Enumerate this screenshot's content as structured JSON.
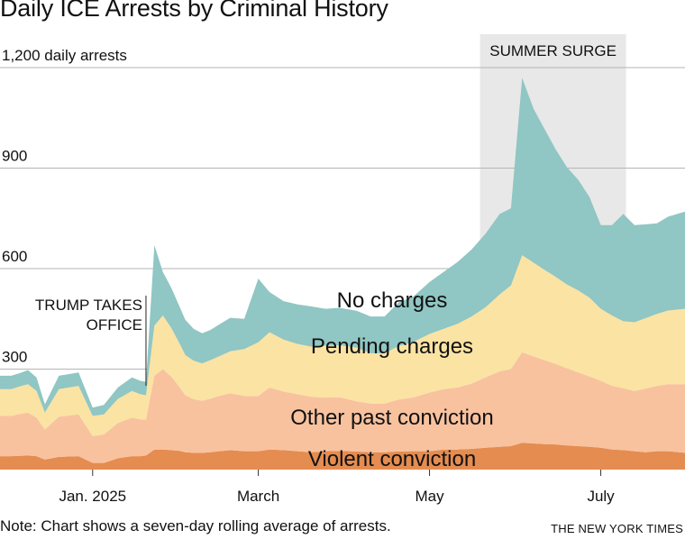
{
  "title": "Daily ICE Arrests by Criminal History",
  "note": "Note: Chart shows a seven-day rolling average of arrests.",
  "source": "THE NEW YORK TIMES",
  "colors": {
    "violent": "#e58c50",
    "other_past": "#f8c29f",
    "pending": "#fbe3a3",
    "no_charges": "#90c6c3",
    "shade": "#c8c8c8",
    "grid": "#b5b5b5"
  },
  "chart_data": {
    "type": "area",
    "stacked": true,
    "x_start": "2024-11-29",
    "x_end": "2025-07-31",
    "ylim": [
      0,
      1200
    ],
    "yticks": [
      {
        "value": 300,
        "label": "300"
      },
      {
        "value": 600,
        "label": "600"
      },
      {
        "value": 900,
        "label": "900"
      },
      {
        "value": 1200,
        "label": "1,200 daily arrests"
      }
    ],
    "xticks": [
      {
        "date": "2025-01-01",
        "label": "Jan. 2025"
      },
      {
        "date": "2025-03-01",
        "label": "March"
      },
      {
        "date": "2025-05-01",
        "label": "May"
      },
      {
        "date": "2025-07-01",
        "label": "July"
      }
    ],
    "x": [
      "2024-11-29",
      "2024-12-03",
      "2024-12-06",
      "2024-12-09",
      "2024-12-12",
      "2024-12-15",
      "2024-12-20",
      "2024-12-27",
      "2025-01-01",
      "2025-01-05",
      "2025-01-10",
      "2025-01-15",
      "2025-01-18",
      "2025-01-20",
      "2025-01-23",
      "2025-01-26",
      "2025-01-29",
      "2025-02-01",
      "2025-02-03",
      "2025-02-06",
      "2025-02-09",
      "2025-02-12",
      "2025-02-15",
      "2025-02-19",
      "2025-02-24",
      "2025-03-01",
      "2025-03-05",
      "2025-03-10",
      "2025-03-15",
      "2025-03-20",
      "2025-03-25",
      "2025-03-30",
      "2025-04-05",
      "2025-04-10",
      "2025-04-15",
      "2025-04-20",
      "2025-04-25",
      "2025-05-01",
      "2025-05-06",
      "2025-05-11",
      "2025-05-16",
      "2025-05-21",
      "2025-05-26",
      "2025-05-30",
      "2025-06-03",
      "2025-06-07",
      "2025-06-11",
      "2025-06-15",
      "2025-06-19",
      "2025-06-23",
      "2025-06-27",
      "2025-07-01",
      "2025-07-05",
      "2025-07-09",
      "2025-07-13",
      "2025-07-17",
      "2025-07-21",
      "2025-07-25",
      "2025-07-31"
    ],
    "series": [
      {
        "name": "Violent conviction",
        "label": "Violent conviction",
        "color_key": "violent",
        "values": [
          40,
          40,
          41,
          42,
          40,
          30,
          38,
          40,
          20,
          20,
          34,
          40,
          40,
          42,
          60,
          60,
          58,
          56,
          52,
          50,
          50,
          52,
          55,
          58,
          55,
          55,
          60,
          58,
          55,
          52,
          55,
          56,
          54,
          52,
          52,
          54,
          55,
          55,
          60,
          60,
          62,
          65,
          68,
          70,
          80,
          78,
          76,
          75,
          72,
          70,
          68,
          65,
          60,
          58,
          55,
          52,
          55,
          55,
          50
        ]
      },
      {
        "name": "Other past conviction",
        "label": "Other past conviction",
        "color_key": "other_past",
        "values": [
          120,
          120,
          125,
          128,
          115,
          90,
          120,
          125,
          80,
          85,
          105,
          115,
          110,
          108,
          220,
          240,
          220,
          190,
          170,
          160,
          155,
          160,
          165,
          170,
          165,
          165,
          185,
          175,
          170,
          165,
          160,
          160,
          150,
          145,
          145,
          155,
          160,
          175,
          180,
          185,
          195,
          210,
          225,
          230,
          270,
          260,
          250,
          240,
          230,
          220,
          210,
          200,
          190,
          185,
          180,
          190,
          195,
          200,
          205
        ]
      },
      {
        "name": "Pending charges",
        "label": "Pending charges",
        "color_key": "pending",
        "values": [
          80,
          80,
          82,
          85,
          80,
          50,
          82,
          85,
          60,
          60,
          72,
          80,
          75,
          72,
          150,
          160,
          145,
          130,
          120,
          115,
          112,
          115,
          118,
          125,
          140,
          160,
          165,
          155,
          150,
          150,
          155,
          155,
          160,
          150,
          150,
          160,
          165,
          175,
          180,
          190,
          200,
          210,
          230,
          250,
          290,
          280,
          270,
          260,
          250,
          245,
          235,
          215,
          210,
          200,
          205,
          210,
          215,
          220,
          225
        ]
      },
      {
        "name": "No charges",
        "label": "No charges",
        "color_key": "no_charges",
        "values": [
          40,
          40,
          40,
          42,
          40,
          25,
          40,
          40,
          25,
          28,
          34,
          40,
          40,
          40,
          240,
          130,
          120,
          110,
          105,
          95,
          90,
          90,
          95,
          100,
          90,
          190,
          120,
          115,
          118,
          120,
          110,
          112,
          110,
          110,
          110,
          130,
          135,
          155,
          170,
          185,
          200,
          220,
          240,
          230,
          530,
          460,
          420,
          380,
          350,
          330,
          300,
          250,
          270,
          320,
          290,
          280,
          270,
          280,
          290
        ]
      }
    ],
    "annotations": [
      {
        "text": "SUMMER SURGE",
        "type": "shaded-range",
        "start": "2025-05-19",
        "end": "2025-07-10"
      },
      {
        "text_lines": [
          "TRUMP TAKES",
          "OFFICE"
        ],
        "type": "event-line",
        "date": "2025-01-20"
      }
    ]
  }
}
